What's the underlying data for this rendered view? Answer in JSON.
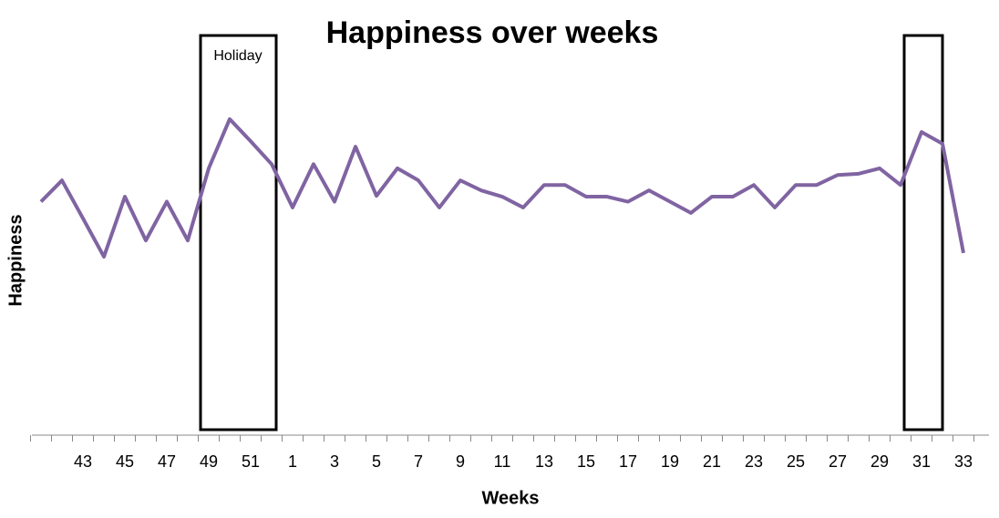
{
  "chart_data": {
    "type": "line",
    "title": "Happiness over weeks",
    "x_label": "Weeks",
    "y_label": "Happiness",
    "categories": [
      null,
      null,
      43,
      null,
      45,
      null,
      47,
      null,
      49,
      null,
      51,
      null,
      1,
      null,
      3,
      null,
      5,
      null,
      7,
      null,
      9,
      null,
      11,
      null,
      13,
      null,
      15,
      null,
      17,
      null,
      19,
      null,
      21,
      null,
      23,
      null,
      25,
      null,
      27,
      null,
      29,
      null,
      31,
      null,
      33
    ],
    "values": [
      56,
      61.1,
      52,
      42.8,
      57.2,
      46.7,
      56,
      46.7,
      64,
      75.8,
      70.5,
      65,
      54.6,
      65,
      56,
      69.2,
      57.4,
      64,
      61.1,
      54.6,
      61.1,
      58.7,
      57.2,
      54.6,
      60,
      60,
      57.2,
      57.2,
      56,
      58.7,
      56,
      53.3,
      57.2,
      57.2,
      60,
      54.6,
      60,
      60,
      62.4,
      62.7,
      64,
      60,
      72.7,
      69.9,
      43.7
    ],
    "color": "#8064a2",
    "ylim": [
      0,
      100
    ],
    "annotations": [
      {
        "text": "Holiday"
      }
    ]
  }
}
